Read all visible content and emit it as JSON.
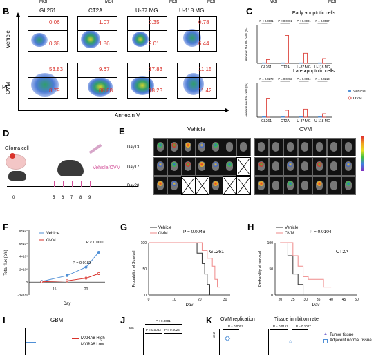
{
  "top_strip": [
    "MOI",
    "MOI",
    "MOI",
    "MOI",
    "MOI",
    "MOI"
  ],
  "panelB": {
    "letter": "B",
    "columns": [
      "GL261",
      "CT2A",
      "U-87 MG",
      "U-118 MG"
    ],
    "rows": [
      "Vehicle",
      "OVM"
    ],
    "y_label": "PI",
    "x_label": "Annexin V",
    "quadrants": {
      "vehicle": [
        [
          "0.06",
          "0.38"
        ],
        [
          "1.07",
          "1.86"
        ],
        [
          "0.35",
          "2.01"
        ],
        [
          "0.78",
          "6.44"
        ]
      ],
      "ovm": [
        [
          "53.83",
          "8.79"
        ],
        [
          "9.67",
          "88.88"
        ],
        [
          "17.83",
          "18.23"
        ],
        [
          "11.15",
          "11.42"
        ]
      ]
    }
  },
  "panelC": {
    "letter": "C",
    "chart_data": [
      {
        "type": "bar",
        "title": "Early apoptotic cells",
        "ylabel": "Annexin V+ PI- cells (%)",
        "categories": [
          "GL261",
          "CT2A",
          "U-87 MG",
          "U-118 MG"
        ],
        "ylim": [
          0,
          80
        ],
        "series": [
          {
            "name": "Vehicle",
            "values": [
              1,
              1,
              1,
              1
            ],
            "color": "#4f8fd6"
          },
          {
            "name": "OVM",
            "values": [
              8,
              58,
              21,
              10
            ],
            "color": "#d9322b"
          }
        ],
        "pvalues": [
          "P < 0.0001",
          "P < 0.0001",
          "P < 0.0001",
          "P = 0.0587"
        ]
      },
      {
        "type": "bar",
        "title": "Late apoptotic cells",
        "ylabel": "Annexin V+ PI+ cells (%)",
        "categories": [
          "GL261",
          "CT2A",
          "U-87 MG",
          "U-118 MG"
        ],
        "ylim": [
          0,
          60
        ],
        "series": [
          {
            "name": "Vehicle",
            "values": [
              1,
              1,
              1,
              1
            ],
            "color": "#4f8fd6"
          },
          {
            "name": "OVM",
            "values": [
              33,
              12,
              14,
              6
            ],
            "color": "#d9322b"
          }
        ],
        "pvalues": [
          "P = 0.0272",
          "P = 0.0282",
          "P = 0.0034",
          "P = 0.0213"
        ]
      }
    ],
    "legend": [
      "Vehicle",
      "OVM"
    ]
  },
  "panelD": {
    "letter": "D",
    "cell_label": "Glioma cell",
    "treatment": "Vehicle/OVM",
    "day0": "0",
    "days": [
      "5",
      "6",
      "7",
      "8",
      "9"
    ]
  },
  "panelE": {
    "letter": "E",
    "groups": [
      "Vehicle",
      "OVM"
    ],
    "days": [
      "Day13",
      "Day17",
      "Day20"
    ]
  },
  "panelF": {
    "letter": "F",
    "chart_data": {
      "type": "line",
      "xlabel": "Day",
      "ylabel": "Total flux (p/s)",
      "x": [
        13,
        17,
        20,
        22
      ],
      "xticks": [
        "15",
        "20"
      ],
      "yticks": [
        "−2×10⁶",
        "0",
        "2×10⁶",
        "4×10⁶",
        "6×10⁶",
        "8×10⁶"
      ],
      "series": [
        {
          "name": "Vehicle",
          "values": [
            0.1,
            1.0,
            2.3,
            4.6
          ],
          "color": "#4f8fd6"
        },
        {
          "name": "OVM",
          "values": [
            0.05,
            0.2,
            0.6,
            1.3
          ],
          "color": "#d9322b"
        }
      ],
      "annotations": [
        "P = 0.0183",
        "P < 0.0001"
      ]
    }
  },
  "panelG": {
    "letter": "G",
    "chart_data": {
      "type": "line",
      "title": "GL261",
      "xlabel": "Day",
      "ylabel": "Probability of Survival",
      "xticks": [
        "0",
        "10",
        "20",
        "30"
      ],
      "yticks": [
        "0",
        "50",
        "100"
      ],
      "series": [
        {
          "name": "Vehicle",
          "color": "#333333",
          "steps": [
            [
              0,
              100
            ],
            [
              19,
              100
            ],
            [
              19,
              80
            ],
            [
              21,
              80
            ],
            [
              21,
              60
            ],
            [
              22,
              60
            ],
            [
              22,
              40
            ],
            [
              23,
              40
            ],
            [
              23,
              20
            ],
            [
              24,
              20
            ],
            [
              24,
              0
            ]
          ]
        },
        {
          "name": "OVM",
          "color": "#ef8a8a",
          "steps": [
            [
              0,
              100
            ],
            [
              21,
              100
            ],
            [
              21,
              85
            ],
            [
              23,
              85
            ],
            [
              23,
              70
            ],
            [
              25,
              70
            ],
            [
              25,
              55
            ],
            [
              26,
              55
            ],
            [
              26,
              30
            ],
            [
              27,
              30
            ],
            [
              27,
              15
            ],
            [
              28,
              15
            ]
          ]
        }
      ],
      "pvalue": "P = 0.0046"
    }
  },
  "panelH": {
    "letter": "H",
    "chart_data": {
      "type": "line",
      "title": "CT2A",
      "xlabel": "Day",
      "ylabel": "Probability of survival",
      "xticks": [
        "20",
        "25",
        "30",
        "35",
        "40",
        "45",
        "50"
      ],
      "yticks": [
        "0",
        "50",
        "100"
      ],
      "series": [
        {
          "name": "Vehicle",
          "color": "#333333",
          "steps": [
            [
              20,
              100
            ],
            [
              23,
              100
            ],
            [
              23,
              75
            ],
            [
              25,
              75
            ],
            [
              25,
              40
            ],
            [
              27,
              40
            ],
            [
              27,
              20
            ],
            [
              29,
              20
            ],
            [
              29,
              0
            ]
          ]
        },
        {
          "name": "OVM",
          "color": "#ef8a8a",
          "steps": [
            [
              20,
              100
            ],
            [
              25,
              100
            ],
            [
              25,
              75
            ],
            [
              27,
              75
            ],
            [
              27,
              55
            ],
            [
              29,
              55
            ],
            [
              29,
              35
            ],
            [
              31,
              35
            ],
            [
              31,
              30
            ],
            [
              37,
              30
            ],
            [
              37,
              15
            ],
            [
              40,
              15
            ]
          ]
        }
      ],
      "pvalue": "P = 0.0104"
    }
  },
  "panelI": {
    "letter": "I",
    "title": "GBM",
    "legend": [
      "MXRA8 High",
      "MXRA8 Low"
    ]
  },
  "panelJ": {
    "letter": "J",
    "ytick": "300",
    "pvalues": [
      "P < 0.0001",
      "P = 0.0083",
      "P = 0.0024"
    ]
  },
  "panelK": {
    "letter": "K",
    "titles": [
      "OVM replication",
      "Tissue inhibition rate"
    ],
    "pvalues": [
      "P = 0.0007",
      "P = 0.0157",
      "P = 0.7027"
    ],
    "ylabel_fragment": "cent",
    "legend": [
      "Tumor tissue",
      "Adjacent normal tissue"
    ]
  }
}
